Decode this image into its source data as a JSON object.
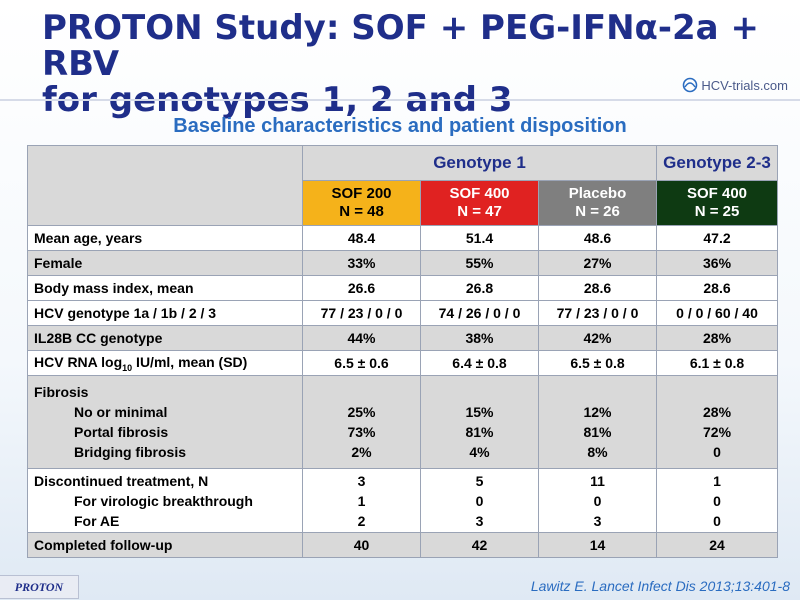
{
  "title": {
    "line1": "PROTON Study: SOF + PEG-IFNα-2a + RBV",
    "line2": "for genotypes 1, 2 and 3"
  },
  "logo": {
    "text": "HCV-trials.com",
    "icon": "hcv-trials-logo-icon"
  },
  "subtitle": "Baseline characteristics and patient disposition",
  "groups": {
    "g1": "Genotype 1",
    "g23": "Genotype 2-3"
  },
  "arms": [
    {
      "name": "SOF 200",
      "n": "N = 48",
      "color": "#f5b21a"
    },
    {
      "name": "SOF 400",
      "n": "N = 47",
      "color": "#e02221"
    },
    {
      "name": "Placebo",
      "n": "N = 26",
      "color": "#7f7f7f"
    },
    {
      "name": "SOF 400",
      "n": "N = 25",
      "color": "#0e3a12"
    }
  ],
  "rows": {
    "age": {
      "label": "Mean age, years",
      "values": [
        "48.4",
        "51.4",
        "48.6",
        "47.2"
      ]
    },
    "female": {
      "label": "Female",
      "values": [
        "33%",
        "55%",
        "27%",
        "36%"
      ]
    },
    "bmi": {
      "label": "Body mass index, mean",
      "values": [
        "26.6",
        "26.8",
        "28.6",
        "28.6"
      ]
    },
    "geno": {
      "label": "HCV genotype 1a / 1b / 2 / 3",
      "values": [
        "77 / 23 / 0 / 0",
        "74 / 26 / 0 / 0",
        "77 / 23 / 0 / 0",
        "0 / 0 / 60 / 40"
      ]
    },
    "il28b": {
      "label": "IL28B CC genotype",
      "values": [
        "44%",
        "38%",
        "42%",
        "28%"
      ]
    },
    "rna": {
      "label_pre": "HCV RNA log",
      "label_sub": "10",
      "label_post": " IU/ml, mean (SD)",
      "values": [
        "6.5 ± 0.6",
        "6.4 ± 0.8",
        "6.5 ± 0.8",
        "6.1 ± 0.8"
      ]
    },
    "fibrosis": {
      "label": "Fibrosis",
      "sub_labels": [
        "No or minimal",
        "Portal fibrosis",
        "Bridging fibrosis"
      ],
      "values": [
        [
          "25%",
          "73%",
          "2%"
        ],
        [
          "15%",
          "81%",
          "4%"
        ],
        [
          "12%",
          "81%",
          "8%"
        ],
        [
          "28%",
          "72%",
          "0"
        ]
      ]
    },
    "discontinued": {
      "label": "Discontinued treatment, N",
      "sub_labels": [
        "For virologic breakthrough",
        "For AE"
      ],
      "values": [
        [
          "3",
          "1",
          "2"
        ],
        [
          "5",
          "0",
          "3"
        ],
        [
          "11",
          "0",
          "3"
        ],
        [
          "1",
          "0",
          "0"
        ]
      ]
    },
    "completed": {
      "label": "Completed follow-up",
      "values": [
        "40",
        "42",
        "14",
        "24"
      ]
    }
  },
  "badge": "PROTON",
  "citation": "Lawitz  E. Lancet Infect Dis 2013;13:401-8"
}
